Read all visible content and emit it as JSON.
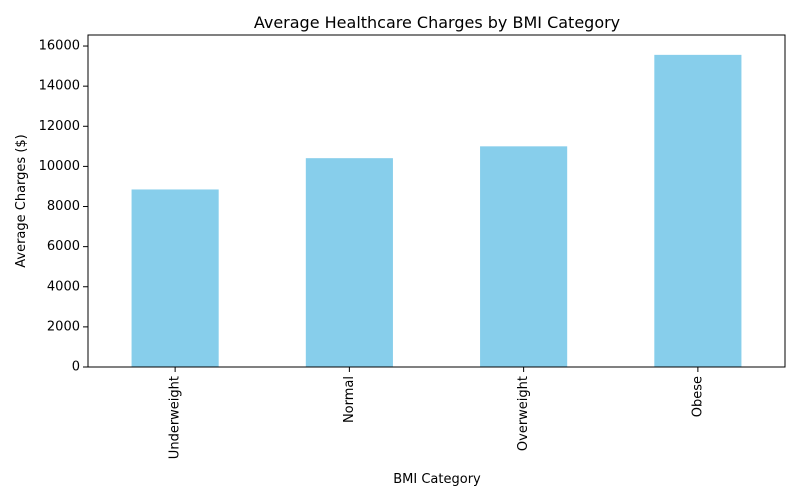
{
  "chart_data": {
    "type": "bar",
    "title": "Average Healthcare Charges by BMI Category",
    "xlabel": "BMI Category",
    "ylabel": "Average Charges ($)",
    "categories": [
      "Underweight",
      "Normal",
      "Overweight",
      "Obese"
    ],
    "values": [
      8850,
      10410,
      11000,
      15560
    ],
    "ylim": [
      0,
      16550
    ],
    "yticks": [
      0,
      2000,
      4000,
      6000,
      8000,
      10000,
      12000,
      14000,
      16000
    ],
    "grid": false,
    "legend": "none",
    "bar_color": "#87ceeb",
    "x_tick_rotation": "vertical"
  }
}
